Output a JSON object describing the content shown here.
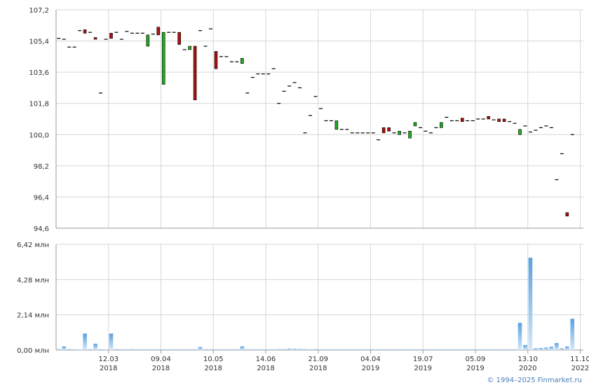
{
  "credit": "© 1994–2025 Finmarket.ru",
  "colors": {
    "grid": "#d6d6d6",
    "axis": "#999999",
    "up": "#22aa22",
    "down": "#aa1111",
    "line": "#000000",
    "volume_top": "#5aa0e0",
    "volume_bottom": "#d4e8fa"
  },
  "chart_data": [
    {
      "type": "candlestick",
      "title": "",
      "ylabel": "",
      "ylim": [
        94.6,
        107.2
      ],
      "yticks": [
        "107,2",
        "105,4",
        "103,6",
        "101,8",
        "100,0",
        "98,2",
        "96,4",
        "94,6"
      ],
      "ytick_values": [
        107.2,
        105.4,
        103.6,
        101.8,
        100.0,
        98.2,
        96.4,
        94.6
      ],
      "grid": true,
      "candles": [
        {
          "o": 105.55,
          "c": 105.55
        },
        {
          "o": 105.5,
          "c": 105.5
        },
        {
          "o": 105.05,
          "c": 105.05
        },
        {
          "o": 105.05,
          "c": 105.05
        },
        {
          "o": 106.0,
          "c": 106.0
        },
        {
          "o": 106.05,
          "c": 105.85
        },
        {
          "o": 105.9,
          "c": 105.9
        },
        {
          "o": 105.6,
          "c": 105.5
        },
        {
          "o": 102.4,
          "c": 102.4
        },
        {
          "o": 105.5,
          "c": 105.5
        },
        {
          "o": 105.85,
          "c": 105.55
        },
        {
          "o": 105.9,
          "c": 105.9
        },
        {
          "o": 105.5,
          "c": 105.5
        },
        {
          "o": 105.95,
          "c": 105.95
        },
        {
          "o": 105.85,
          "c": 105.85
        },
        {
          "o": 105.85,
          "c": 105.85
        },
        {
          "o": 105.85,
          "c": 105.85
        },
        {
          "o": 105.1,
          "c": 105.75
        },
        {
          "o": 105.8,
          "c": 105.8
        },
        {
          "o": 106.2,
          "c": 105.75
        },
        {
          "o": 102.9,
          "c": 105.9
        },
        {
          "o": 105.9,
          "c": 105.9
        },
        {
          "o": 105.9,
          "c": 105.9
        },
        {
          "o": 105.9,
          "c": 105.2
        },
        {
          "o": 104.9,
          "c": 104.9
        },
        {
          "o": 104.9,
          "c": 105.1
        },
        {
          "o": 105.1,
          "c": 102.0
        },
        {
          "o": 106.0,
          "c": 106.0
        },
        {
          "o": 105.1,
          "c": 105.1
        },
        {
          "o": 106.1,
          "c": 106.1
        },
        {
          "o": 104.8,
          "c": 103.8
        },
        {
          "o": 104.5,
          "c": 104.5
        },
        {
          "o": 104.5,
          "c": 104.5
        },
        {
          "o": 104.2,
          "c": 104.2
        },
        {
          "o": 104.2,
          "c": 104.2
        },
        {
          "o": 104.1,
          "c": 104.4
        },
        {
          "o": 102.4,
          "c": 102.4
        },
        {
          "o": 103.3,
          "c": 103.3
        },
        {
          "o": 103.5,
          "c": 103.5
        },
        {
          "o": 103.5,
          "c": 103.5
        },
        {
          "o": 103.5,
          "c": 103.5
        },
        {
          "o": 103.8,
          "c": 103.8
        },
        {
          "o": 101.8,
          "c": 101.8
        },
        {
          "o": 102.5,
          "c": 102.5
        },
        {
          "o": 102.8,
          "c": 102.8
        },
        {
          "o": 103.0,
          "c": 103.0
        },
        {
          "o": 102.7,
          "c": 102.7
        },
        {
          "o": 100.1,
          "c": 100.1
        },
        {
          "o": 101.1,
          "c": 101.1
        },
        {
          "o": 102.2,
          "c": 102.2
        },
        {
          "o": 101.5,
          "c": 101.5
        },
        {
          "o": 100.8,
          "c": 100.8
        },
        {
          "o": 100.8,
          "c": 100.8
        },
        {
          "o": 100.3,
          "c": 100.8
        },
        {
          "o": 100.3,
          "c": 100.3
        },
        {
          "o": 100.3,
          "c": 100.3
        },
        {
          "o": 100.1,
          "c": 100.1
        },
        {
          "o": 100.1,
          "c": 100.1
        },
        {
          "o": 100.1,
          "c": 100.1
        },
        {
          "o": 100.1,
          "c": 100.1
        },
        {
          "o": 100.1,
          "c": 100.1
        },
        {
          "o": 99.7,
          "c": 99.7
        },
        {
          "o": 100.4,
          "c": 100.1
        },
        {
          "o": 100.4,
          "c": 100.2
        },
        {
          "o": 100.1,
          "c": 100.1
        },
        {
          "o": 100.0,
          "c": 100.2
        },
        {
          "o": 100.1,
          "c": 100.1
        },
        {
          "o": 99.8,
          "c": 100.2
        },
        {
          "o": 100.5,
          "c": 100.7
        },
        {
          "o": 100.4,
          "c": 100.4
        },
        {
          "o": 100.2,
          "c": 100.2
        },
        {
          "o": 100.1,
          "c": 100.1
        },
        {
          "o": 100.4,
          "c": 100.4
        },
        {
          "o": 100.4,
          "c": 100.7
        },
        {
          "o": 101.0,
          "c": 101.0
        },
        {
          "o": 100.8,
          "c": 100.8
        },
        {
          "o": 100.8,
          "c": 100.8
        },
        {
          "o": 100.95,
          "c": 100.75
        },
        {
          "o": 100.8,
          "c": 100.8
        },
        {
          "o": 100.8,
          "c": 100.8
        },
        {
          "o": 100.9,
          "c": 100.9
        },
        {
          "o": 100.9,
          "c": 100.9
        },
        {
          "o": 101.05,
          "c": 100.9
        },
        {
          "o": 100.85,
          "c": 100.85
        },
        {
          "o": 100.9,
          "c": 100.75
        },
        {
          "o": 100.9,
          "c": 100.75
        },
        {
          "o": 100.75,
          "c": 100.75
        },
        {
          "o": 100.65,
          "c": 100.65
        },
        {
          "o": 100.0,
          "c": 100.3
        },
        {
          "o": 100.5,
          "c": 100.5
        },
        {
          "o": 100.15,
          "c": 100.15
        },
        {
          "o": 100.25,
          "c": 100.25
        },
        {
          "o": 100.4,
          "c": 100.4
        },
        {
          "o": 100.5,
          "c": 100.5
        },
        {
          "o": 100.4,
          "c": 100.4
        },
        {
          "o": 97.4,
          "c": 97.4
        },
        {
          "o": 98.9,
          "c": 98.9
        },
        {
          "o": 95.5,
          "c": 95.3
        },
        {
          "o": 100.0,
          "c": 100.0
        }
      ]
    },
    {
      "type": "bar",
      "title": "",
      "ylabel": "",
      "ylim": [
        0,
        6.42
      ],
      "yticks": [
        "6,42 млн",
        "4,28 млн",
        "2,14 млн",
        "0,00 млн"
      ],
      "ytick_values": [
        6.42,
        4.28,
        2.14,
        0.0
      ],
      "grid": true,
      "values": [
        0.05,
        0.22,
        0.05,
        0.04,
        0.03,
        1.0,
        0.05,
        0.38,
        0.04,
        0.03,
        1.0,
        0.05,
        0.04,
        0.04,
        0.05,
        0.04,
        0.04,
        0.04,
        0.04,
        0.04,
        0.04,
        0.04,
        0.04,
        0.04,
        0.04,
        0.04,
        0.04,
        0.18,
        0.04,
        0.04,
        0.04,
        0.04,
        0.04,
        0.04,
        0.04,
        0.22,
        0.04,
        0.04,
        0.04,
        0.04,
        0.04,
        0.04,
        0.05,
        0.05,
        0.08,
        0.07,
        0.06,
        0.05,
        0.04,
        0.05,
        0.04,
        0.04,
        0.04,
        0.04,
        0.04,
        0.04,
        0.04,
        0.04,
        0.04,
        0.04,
        0.04,
        0.04,
        0.04,
        0.04,
        0.04,
        0.04,
        0.04,
        0.04,
        0.04,
        0.04,
        0.04,
        0.04,
        0.04,
        0.04,
        0.04,
        0.04,
        0.04,
        0.04,
        0.04,
        0.04,
        0.04,
        0.04,
        0.04,
        0.04,
        0.04,
        0.04,
        0.04,
        0.04,
        1.65,
        0.3,
        5.6,
        0.1,
        0.12,
        0.15,
        0.2,
        0.42,
        0.1,
        0.22,
        1.9
      ]
    }
  ],
  "x_axis": {
    "labels": [
      {
        "day": "12.03",
        "year": "2018",
        "index": 10
      },
      {
        "day": "09.04",
        "year": "2018",
        "index": 20
      },
      {
        "day": "10.05",
        "year": "2018",
        "index": 30
      },
      {
        "day": "14.06",
        "year": "2018",
        "index": 40
      },
      {
        "day": "21.09",
        "year": "2018",
        "index": 50
      },
      {
        "day": "04.04",
        "year": "2019",
        "index": 60
      },
      {
        "day": "19.07",
        "year": "2019",
        "index": 70
      },
      {
        "day": "05.09",
        "year": "2019",
        "index": 80
      },
      {
        "day": "13.10",
        "year": "2020",
        "index": 90
      },
      {
        "day": "11.10",
        "year": "2022",
        "index": 100
      }
    ]
  }
}
